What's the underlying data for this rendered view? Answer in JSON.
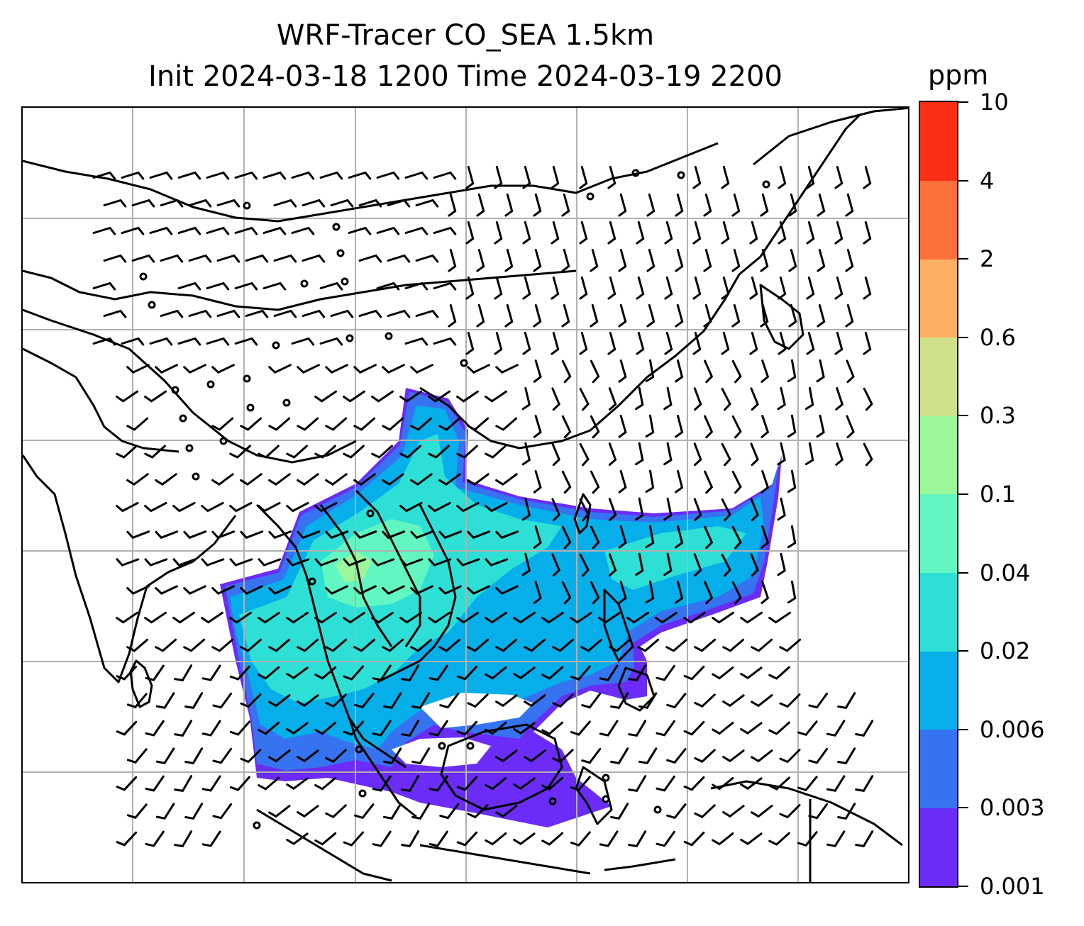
{
  "title": {
    "line1": "WRF-Tracer CO_SEA 1.5km",
    "line2": "Init 2024-03-18 1200 Time 2024-03-19 2200"
  },
  "colorbar": {
    "unit": "ppm",
    "tick_labels": [
      "0.001",
      "0.003",
      "0.006",
      "0.02",
      "0.04",
      "0.1",
      "0.3",
      "0.6",
      "2",
      "4",
      "10"
    ],
    "colors": [
      "#6a2cf6",
      "#3573f0",
      "#06aeea",
      "#2edfd6",
      "#62f7c2",
      "#9af89a",
      "#cfe28a",
      "#fdb061",
      "#fd6f3b",
      "#fb2f16"
    ]
  },
  "map": {
    "projection": "lat-lon",
    "gridlines": true,
    "gridline_color": "#b0b0b0",
    "coastline_color": "#000000",
    "plume_levels_shown": [
      "0.001",
      "0.003",
      "0.006",
      "0.02",
      "0.04",
      "0.1"
    ],
    "wind_barbs": true,
    "calm_wind_circles": true
  }
}
